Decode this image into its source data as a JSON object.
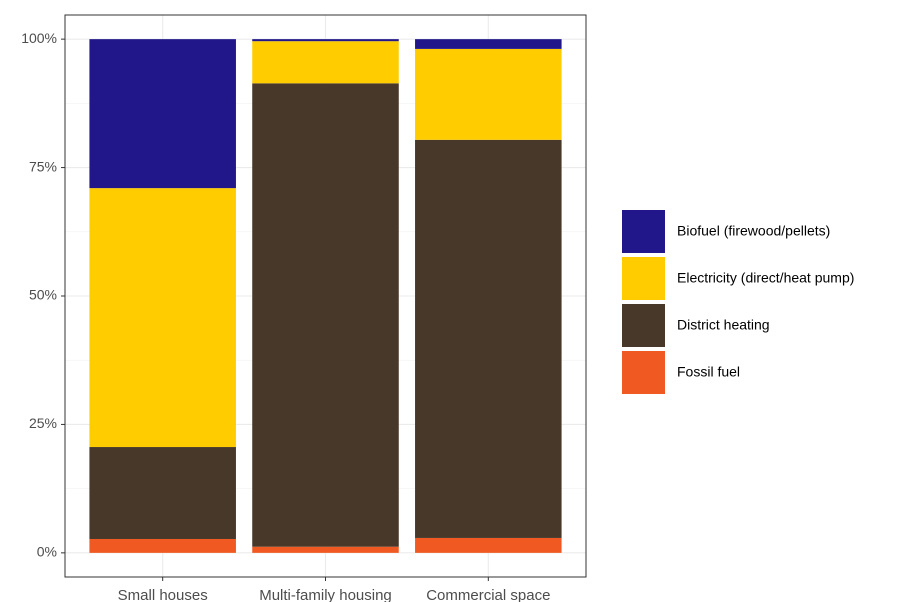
{
  "chart_data": {
    "type": "stacked_bar",
    "categories": [
      "Small houses",
      "Multi-family housing",
      "Commercial space"
    ],
    "series": [
      {
        "name": "Biofuel (firewood/pellets)",
        "color": "#22178a",
        "values": [
          29.0,
          0.4,
          1.9
        ]
      },
      {
        "name": "Electricity (direct/heat pump)",
        "color": "#ffcc00",
        "values": [
          50.4,
          8.2,
          17.7
        ]
      },
      {
        "name": "District heating",
        "color": "#47382a",
        "values": [
          17.9,
          90.2,
          77.5
        ]
      },
      {
        "name": "Fossil fuel",
        "color": "#f05a22",
        "values": [
          2.7,
          1.2,
          2.9
        ]
      }
    ],
    "ylim": [
      -4.7,
      104.7
    ],
    "yticks": [
      {
        "value": 0,
        "label": "0%"
      },
      {
        "value": 25,
        "label": "25%"
      },
      {
        "value": 50,
        "label": "50%"
      },
      {
        "value": 75,
        "label": "75%"
      },
      {
        "value": 100,
        "label": "100%"
      }
    ],
    "grid": true
  }
}
